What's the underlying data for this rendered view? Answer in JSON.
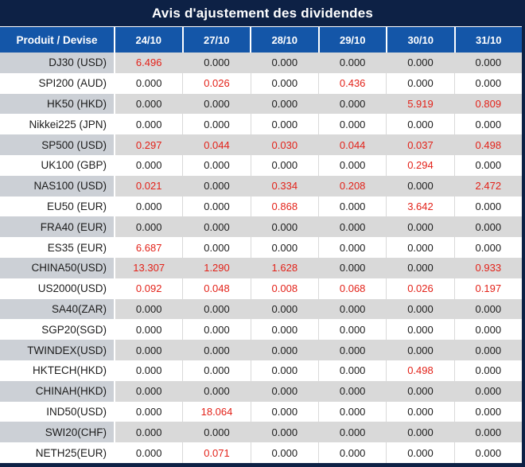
{
  "title": "Avis d'ajustement des dividendes",
  "colors": {
    "title_navy": "#0d2145",
    "header_blue": "#1456a8",
    "row_gray": "#d9d9d9",
    "product_col_gray": "#ccd0d6",
    "highlight_red": "#e32219",
    "text_black": "#1c1c1c"
  },
  "table": {
    "zero_value": "0.000",
    "product_header": "Produit / Devise",
    "date_headers": [
      "24/10",
      "27/10",
      "28/10",
      "29/10",
      "30/10",
      "31/10"
    ],
    "rows": [
      {
        "product": "DJ30 (USD)",
        "values": [
          "6.496",
          "0.000",
          "0.000",
          "0.000",
          "0.000",
          "0.000"
        ]
      },
      {
        "product": "SPI200 (AUD)",
        "values": [
          "0.000",
          "0.026",
          "0.000",
          "0.436",
          "0.000",
          "0.000"
        ]
      },
      {
        "product": "HK50 (HKD)",
        "values": [
          "0.000",
          "0.000",
          "0.000",
          "0.000",
          "5.919",
          "0.809"
        ]
      },
      {
        "product": "Nikkei225 (JPN)",
        "values": [
          "0.000",
          "0.000",
          "0.000",
          "0.000",
          "0.000",
          "0.000"
        ]
      },
      {
        "product": "SP500 (USD)",
        "values": [
          "0.297",
          "0.044",
          "0.030",
          "0.044",
          "0.037",
          "0.498"
        ]
      },
      {
        "product": "UK100 (GBP)",
        "values": [
          "0.000",
          "0.000",
          "0.000",
          "0.000",
          "0.294",
          "0.000"
        ]
      },
      {
        "product": "NAS100 (USD)",
        "values": [
          "0.021",
          "0.000",
          "0.334",
          "0.208",
          "0.000",
          "2.472"
        ]
      },
      {
        "product": "EU50 (EUR)",
        "values": [
          "0.000",
          "0.000",
          "0.868",
          "0.000",
          "3.642",
          "0.000"
        ]
      },
      {
        "product": "FRA40 (EUR)",
        "values": [
          "0.000",
          "0.000",
          "0.000",
          "0.000",
          "0.000",
          "0.000"
        ]
      },
      {
        "product": "ES35 (EUR)",
        "values": [
          "6.687",
          "0.000",
          "0.000",
          "0.000",
          "0.000",
          "0.000"
        ]
      },
      {
        "product": "CHINA50(USD)",
        "values": [
          "13.307",
          "1.290",
          "1.628",
          "0.000",
          "0.000",
          "0.933"
        ]
      },
      {
        "product": "US2000(USD)",
        "values": [
          "0.092",
          "0.048",
          "0.008",
          "0.068",
          "0.026",
          "0.197"
        ]
      },
      {
        "product": "SA40(ZAR)",
        "values": [
          "0.000",
          "0.000",
          "0.000",
          "0.000",
          "0.000",
          "0.000"
        ]
      },
      {
        "product": "SGP20(SGD)",
        "values": [
          "0.000",
          "0.000",
          "0.000",
          "0.000",
          "0.000",
          "0.000"
        ]
      },
      {
        "product": "TWINDEX(USD)",
        "values": [
          "0.000",
          "0.000",
          "0.000",
          "0.000",
          "0.000",
          "0.000"
        ]
      },
      {
        "product": "HKTECH(HKD)",
        "values": [
          "0.000",
          "0.000",
          "0.000",
          "0.000",
          "0.498",
          "0.000"
        ]
      },
      {
        "product": "CHINAH(HKD)",
        "values": [
          "0.000",
          "0.000",
          "0.000",
          "0.000",
          "0.000",
          "0.000"
        ]
      },
      {
        "product": "IND50(USD)",
        "values": [
          "0.000",
          "18.064",
          "0.000",
          "0.000",
          "0.000",
          "0.000"
        ]
      },
      {
        "product": "SWI20(CHF)",
        "values": [
          "0.000",
          "0.000",
          "0.000",
          "0.000",
          "0.000",
          "0.000"
        ]
      },
      {
        "product": "NETH25(EUR)",
        "values": [
          "0.000",
          "0.071",
          "0.000",
          "0.000",
          "0.000",
          "0.000"
        ]
      }
    ]
  }
}
